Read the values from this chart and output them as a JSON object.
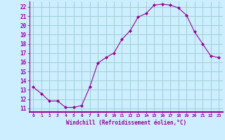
{
  "x": [
    0,
    1,
    2,
    3,
    4,
    5,
    6,
    7,
    8,
    9,
    10,
    11,
    12,
    13,
    14,
    15,
    16,
    17,
    18,
    19,
    20,
    21,
    22,
    23
  ],
  "y": [
    13.3,
    12.6,
    11.8,
    11.8,
    11.1,
    11.1,
    11.3,
    13.3,
    15.9,
    16.5,
    17.0,
    18.5,
    19.4,
    20.9,
    21.3,
    22.2,
    22.3,
    22.2,
    21.9,
    21.1,
    19.3,
    18.0,
    16.7,
    16.5
  ],
  "line_color": "#990099",
  "marker": "D",
  "marker_size": 2.0,
  "bg_color": "#cceeff",
  "grid_color": "#99cccc",
  "xlabel": "Windchill (Refroidissement éolien,°C)",
  "xlabel_color": "#990099",
  "tick_color": "#990099",
  "label_color": "#990099",
  "ylim": [
    10.6,
    22.6
  ],
  "yticks": [
    11,
    12,
    13,
    14,
    15,
    16,
    17,
    18,
    19,
    20,
    21,
    22
  ],
  "xtick_labels": [
    "0",
    "1",
    "2",
    "3",
    "4",
    "5",
    "6",
    "7",
    "8",
    "9",
    "10",
    "11",
    "12",
    "13",
    "14",
    "15",
    "16",
    "17",
    "18",
    "19",
    "20",
    "21",
    "22",
    "23"
  ],
  "xlim": [
    -0.5,
    23.5
  ]
}
